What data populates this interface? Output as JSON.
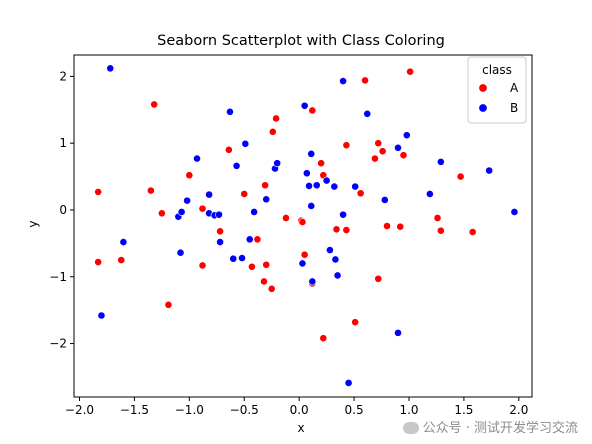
{
  "chart_data": {
    "type": "scatter",
    "title": "Seaborn Scatterplot with Class Coloring",
    "xlabel": "x",
    "ylabel": "y",
    "xlim": [
      -2.05,
      2.12
    ],
    "ylim": [
      -2.8,
      2.32
    ],
    "x_ticks": [
      -2.0,
      -1.5,
      -1.0,
      -0.5,
      0.0,
      0.5,
      1.0,
      1.5,
      2.0
    ],
    "y_ticks": [
      -2,
      -1,
      0,
      1,
      2
    ],
    "x_tick_labels": [
      "−2.0",
      "−1.5",
      "−1.0",
      "−0.5",
      "0.0",
      "0.5",
      "1.0",
      "1.5",
      "2.0"
    ],
    "y_tick_labels": [
      "−2",
      "−1",
      "0",
      "1",
      "2"
    ],
    "grid": false,
    "legend": {
      "title": "class",
      "position": "top-right"
    },
    "series": [
      {
        "name": "A",
        "color": "#ff0000",
        "points": [
          [
            -1.83,
            0.27
          ],
          [
            -1.83,
            -0.78
          ],
          [
            -1.62,
            -0.75
          ],
          [
            -1.32,
            1.58
          ],
          [
            -1.35,
            0.29
          ],
          [
            -1.25,
            -0.05
          ],
          [
            -1.19,
            -1.42
          ],
          [
            -1.0,
            0.52
          ],
          [
            -0.88,
            0.02
          ],
          [
            -0.88,
            -0.83
          ],
          [
            -0.72,
            -0.32
          ],
          [
            -0.64,
            0.9
          ],
          [
            -0.5,
            0.24
          ],
          [
            -0.43,
            -0.85
          ],
          [
            -0.38,
            -0.44
          ],
          [
            -0.31,
            0.37
          ],
          [
            -0.3,
            -0.82
          ],
          [
            -0.32,
            -1.07
          ],
          [
            -0.24,
            1.17
          ],
          [
            -0.21,
            1.37
          ],
          [
            -0.25,
            -1.18
          ],
          [
            -0.12,
            -0.12
          ],
          [
            0.02,
            -0.16
          ],
          [
            0.05,
            -0.67
          ],
          [
            0.03,
            -0.18
          ],
          [
            0.12,
            1.49
          ],
          [
            0.12,
            -1.1
          ],
          [
            0.2,
            0.7
          ],
          [
            0.22,
            0.52
          ],
          [
            0.22,
            -1.92
          ],
          [
            0.34,
            -0.29
          ],
          [
            0.43,
            0.97
          ],
          [
            0.43,
            -0.3
          ],
          [
            0.51,
            -1.68
          ],
          [
            0.56,
            0.25
          ],
          [
            0.6,
            1.94
          ],
          [
            0.69,
            0.77
          ],
          [
            0.72,
            1.0
          ],
          [
            0.72,
            -1.03
          ],
          [
            0.76,
            0.88
          ],
          [
            0.8,
            -0.24
          ],
          [
            0.92,
            -0.25
          ],
          [
            0.95,
            0.82
          ],
          [
            1.01,
            2.07
          ],
          [
            1.26,
            -0.12
          ],
          [
            1.29,
            -0.31
          ],
          [
            1.47,
            0.5
          ],
          [
            1.58,
            -0.33
          ]
        ]
      },
      {
        "name": "B",
        "color": "#0000ff",
        "points": [
          [
            -1.72,
            2.12
          ],
          [
            -1.8,
            -1.58
          ],
          [
            -1.6,
            -0.48
          ],
          [
            -1.1,
            -0.1
          ],
          [
            -1.08,
            -0.64
          ],
          [
            -1.07,
            -0.03
          ],
          [
            -1.02,
            0.14
          ],
          [
            -0.93,
            0.77
          ],
          [
            -0.82,
            -0.05
          ],
          [
            -0.82,
            0.23
          ],
          [
            -0.77,
            -0.08
          ],
          [
            -0.73,
            -0.07
          ],
          [
            -0.72,
            -0.48
          ],
          [
            -0.63,
            1.47
          ],
          [
            -0.6,
            -0.73
          ],
          [
            -0.57,
            0.66
          ],
          [
            -0.52,
            -0.72
          ],
          [
            -0.49,
            0.99
          ],
          [
            -0.45,
            -0.44
          ],
          [
            -0.41,
            -0.03
          ],
          [
            -0.3,
            0.16
          ],
          [
            -0.22,
            0.62
          ],
          [
            -0.2,
            0.7
          ],
          [
            0.05,
            1.56
          ],
          [
            0.03,
            -0.8
          ],
          [
            0.07,
            0.55
          ],
          [
            0.09,
            0.36
          ],
          [
            0.11,
            0.84
          ],
          [
            0.11,
            0.06
          ],
          [
            0.12,
            -1.07
          ],
          [
            0.16,
            0.37
          ],
          [
            0.25,
            0.44
          ],
          [
            0.28,
            -0.6
          ],
          [
            0.32,
            0.35
          ],
          [
            0.33,
            -0.74
          ],
          [
            0.35,
            -0.98
          ],
          [
            0.4,
            -0.07
          ],
          [
            0.4,
            1.93
          ],
          [
            0.45,
            -2.59
          ],
          [
            0.51,
            0.35
          ],
          [
            0.62,
            1.44
          ],
          [
            0.78,
            0.15
          ],
          [
            0.9,
            0.93
          ],
          [
            0.9,
            -1.84
          ],
          [
            0.98,
            1.12
          ],
          [
            1.19,
            0.24
          ],
          [
            1.29,
            0.72
          ],
          [
            1.73,
            0.59
          ],
          [
            1.96,
            -0.03
          ]
        ]
      }
    ]
  },
  "watermark": {
    "text": "公众号 · 测试开发学习交流",
    "icon": "wechat-icon"
  }
}
